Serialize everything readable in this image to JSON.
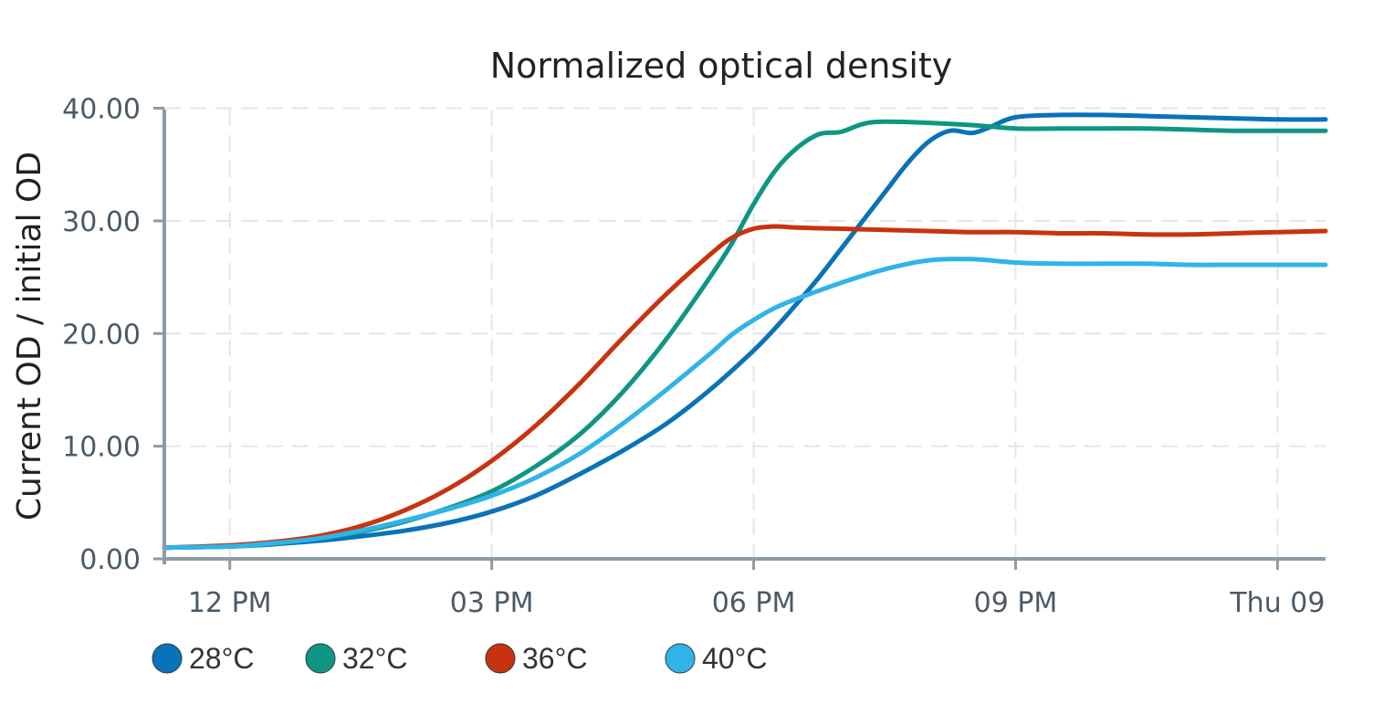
{
  "chart_data": {
    "type": "line",
    "title": "Normalized optical density",
    "ylabel": "Current OD / initial OD",
    "xlabel": "",
    "x_tick_labels": [
      "12 PM",
      "03 PM",
      "06 PM",
      "09 PM",
      "Thu 09"
    ],
    "x_tick_hours": [
      12,
      15,
      18,
      21,
      24
    ],
    "xlim_hours": [
      11.25,
      24.55
    ],
    "y_tick_labels": [
      "0.00",
      "10.00",
      "20.00",
      "30.00",
      "40.00"
    ],
    "y_ticks": [
      0,
      10,
      20,
      30,
      40
    ],
    "ylim": [
      0,
      41.5
    ],
    "grid": true,
    "legend_position": "bottom-left",
    "series": [
      {
        "name": "28°C",
        "color": "#0a72b8",
        "x_hours": [
          11.25,
          12,
          12.5,
          13,
          13.5,
          14,
          14.5,
          15,
          15.5,
          16,
          16.5,
          17,
          17.5,
          18,
          18.25,
          18.5,
          18.75,
          19,
          19.25,
          19.5,
          19.75,
          20,
          20.25,
          20.5,
          20.7,
          21,
          21.5,
          22,
          22.5,
          23,
          23.5,
          24,
          24.55
        ],
        "values": [
          1.0,
          1.1,
          1.3,
          1.6,
          2.0,
          2.5,
          3.2,
          4.2,
          5.6,
          7.5,
          9.6,
          12.0,
          15.0,
          18.5,
          20.5,
          22.7,
          25.0,
          27.5,
          30.0,
          32.5,
          35.0,
          37.0,
          38.0,
          37.8,
          38.3,
          39.2,
          39.4,
          39.4,
          39.3,
          39.2,
          39.1,
          39.0,
          39.0
        ]
      },
      {
        "name": "32°C",
        "color": "#0f9682",
        "x_hours": [
          11.25,
          12,
          12.5,
          13,
          13.5,
          14,
          14.5,
          15,
          15.5,
          16,
          16.5,
          17,
          17.5,
          17.75,
          18,
          18.25,
          18.5,
          18.75,
          19,
          19.25,
          19.5,
          20,
          20.5,
          21,
          21.5,
          22,
          22.5,
          23,
          23.5,
          24,
          24.55
        ],
        "values": [
          1.0,
          1.1,
          1.35,
          1.8,
          2.4,
          3.3,
          4.5,
          6.0,
          8.2,
          11.0,
          14.8,
          19.5,
          25.0,
          28.0,
          31.5,
          34.5,
          36.5,
          37.7,
          37.9,
          38.6,
          38.8,
          38.7,
          38.5,
          38.2,
          38.2,
          38.2,
          38.2,
          38.1,
          38.0,
          38.0,
          38.0
        ]
      },
      {
        "name": "36°C",
        "color": "#c8330f",
        "x_hours": [
          11.25,
          12,
          12.5,
          13,
          13.5,
          14,
          14.5,
          15,
          15.5,
          16,
          16.5,
          17,
          17.5,
          17.75,
          18,
          18.25,
          18.5,
          19,
          19.5,
          20,
          20.5,
          21,
          21.5,
          22,
          22.5,
          23,
          23.5,
          24,
          24.55
        ],
        "values": [
          1.0,
          1.2,
          1.5,
          2.0,
          2.9,
          4.3,
          6.2,
          8.7,
          11.8,
          15.5,
          19.6,
          23.5,
          27.0,
          28.5,
          29.3,
          29.5,
          29.4,
          29.3,
          29.2,
          29.1,
          29.0,
          29.0,
          28.9,
          28.9,
          28.8,
          28.8,
          28.9,
          29.0,
          29.1
        ]
      },
      {
        "name": "40°C",
        "color": "#30b4e8",
        "x_hours": [
          11.25,
          12,
          12.5,
          13,
          13.5,
          14,
          14.5,
          15,
          15.5,
          16,
          16.5,
          17,
          17.5,
          17.75,
          18,
          18.25,
          18.5,
          19,
          19.5,
          20,
          20.5,
          21,
          21.5,
          22,
          22.5,
          23,
          23.5,
          24,
          24.55
        ],
        "values": [
          1.0,
          1.1,
          1.4,
          1.8,
          2.5,
          3.4,
          4.4,
          5.6,
          7.2,
          9.3,
          12.0,
          15.0,
          18.2,
          19.9,
          21.2,
          22.3,
          23.1,
          24.5,
          25.7,
          26.5,
          26.6,
          26.3,
          26.2,
          26.2,
          26.2,
          26.1,
          26.1,
          26.1,
          26.1
        ]
      }
    ]
  }
}
